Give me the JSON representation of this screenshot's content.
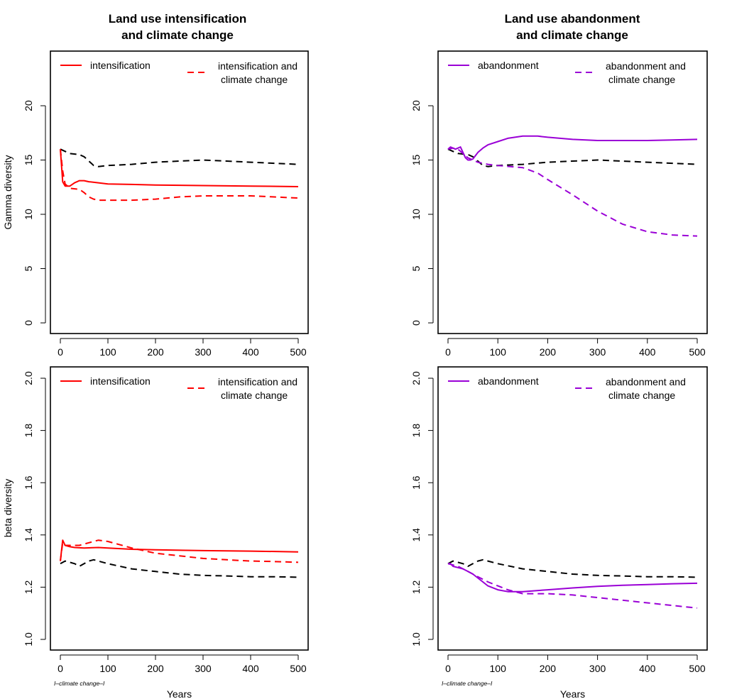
{
  "figure": {
    "panels": [
      {
        "title_line1": "Land use intensification",
        "title_line2": "and climate change"
      },
      {
        "title_line1": "Land use abandonment",
        "title_line2": "and climate change"
      },
      {
        "title_line1": "",
        "title_line2": ""
      },
      {
        "title_line1": "",
        "title_line2": ""
      }
    ]
  },
  "chart_data": [
    {
      "type": "line",
      "title": "Land use intensification and climate change",
      "xlabel": "",
      "ylabel": "Gamma diversity",
      "xlim": [
        0,
        500
      ],
      "ylim": [
        0,
        25
      ],
      "xticks": [
        0,
        100,
        200,
        300,
        400,
        500
      ],
      "yticks": [
        0,
        5,
        10,
        15,
        20
      ],
      "legend": {
        "position": "top",
        "entries": [
          "intensification",
          "intensification and climate change"
        ]
      },
      "series": [
        {
          "name": "intensification",
          "color": "#ff0000",
          "dash": "solid",
          "x": [
            0,
            5,
            10,
            20,
            30,
            40,
            50,
            60,
            80,
            100,
            150,
            200,
            300,
            400,
            500
          ],
          "y": [
            16.0,
            13.0,
            12.6,
            12.6,
            12.9,
            13.1,
            13.1,
            13.0,
            12.9,
            12.8,
            12.75,
            12.7,
            12.65,
            12.6,
            12.55
          ]
        },
        {
          "name": "intensification and climate change",
          "color": "#ff0000",
          "dash": "dashed",
          "x": [
            0,
            5,
            10,
            20,
            40,
            50,
            60,
            70,
            80,
            100,
            150,
            200,
            250,
            300,
            350,
            400,
            450,
            500
          ],
          "y": [
            16.0,
            14.0,
            12.8,
            12.4,
            12.3,
            12.0,
            11.6,
            11.4,
            11.3,
            11.3,
            11.3,
            11.4,
            11.6,
            11.7,
            11.7,
            11.7,
            11.6,
            11.5
          ]
        },
        {
          "name": "",
          "color": "#000000",
          "dash": "dashed",
          "x": [
            0,
            10,
            20,
            40,
            50,
            60,
            70,
            80,
            100,
            150,
            200,
            250,
            300,
            350,
            400,
            450,
            500
          ],
          "y": [
            16.0,
            15.8,
            15.6,
            15.5,
            15.3,
            14.9,
            14.5,
            14.4,
            14.5,
            14.6,
            14.8,
            14.9,
            15.0,
            14.9,
            14.8,
            14.7,
            14.6
          ]
        }
      ]
    },
    {
      "type": "line",
      "title": "Land use abandonment and climate change",
      "xlabel": "",
      "ylabel": "",
      "xlim": [
        0,
        500
      ],
      "ylim": [
        0,
        25
      ],
      "xticks": [
        0,
        100,
        200,
        300,
        400,
        500
      ],
      "yticks": [
        0,
        5,
        10,
        15,
        20
      ],
      "legend": {
        "position": "top",
        "entries": [
          "abandonment",
          "abandonment and climate change"
        ]
      },
      "series": [
        {
          "name": "abandonment",
          "color": "#9a00d6",
          "dash": "solid",
          "x": [
            0,
            5,
            10,
            15,
            20,
            25,
            30,
            35,
            40,
            45,
            50,
            55,
            60,
            70,
            80,
            100,
            120,
            150,
            180,
            200,
            250,
            300,
            350,
            400,
            450,
            500
          ],
          "y": [
            16.0,
            16.2,
            16.1,
            16.0,
            16.1,
            16.2,
            15.7,
            15.2,
            15.0,
            15.0,
            15.1,
            15.4,
            15.7,
            16.1,
            16.4,
            16.7,
            17.0,
            17.2,
            17.2,
            17.1,
            16.9,
            16.8,
            16.8,
            16.8,
            16.85,
            16.9
          ]
        },
        {
          "name": "abandonment and climate change",
          "color": "#9a00d6",
          "dash": "dashed",
          "x": [
            0,
            10,
            20,
            30,
            40,
            50,
            60,
            80,
            100,
            150,
            180,
            200,
            250,
            300,
            350,
            400,
            450,
            500
          ],
          "y": [
            16.0,
            16.1,
            16.0,
            15.6,
            15.2,
            15.0,
            14.8,
            14.6,
            14.5,
            14.3,
            13.8,
            13.2,
            11.8,
            10.3,
            9.1,
            8.4,
            8.1,
            8.0
          ]
        },
        {
          "name": "",
          "color": "#000000",
          "dash": "dashed",
          "x": [
            0,
            10,
            20,
            40,
            50,
            60,
            70,
            80,
            100,
            150,
            200,
            250,
            300,
            350,
            400,
            450,
            500
          ],
          "y": [
            16.0,
            15.8,
            15.6,
            15.5,
            15.3,
            14.9,
            14.5,
            14.4,
            14.5,
            14.6,
            14.8,
            14.9,
            15.0,
            14.9,
            14.8,
            14.7,
            14.6
          ]
        }
      ]
    },
    {
      "type": "line",
      "title": "",
      "xlabel": "Years",
      "ylabel": "beta diversity",
      "xlim": [
        0,
        500
      ],
      "ylim": [
        1.0,
        2.0
      ],
      "xticks": [
        0,
        100,
        200,
        300,
        400,
        500
      ],
      "yticks": [
        1.0,
        1.2,
        1.4,
        1.6,
        1.8,
        2.0
      ],
      "legend": {
        "position": "top",
        "entries": [
          "intensification",
          "intensification and climate change"
        ]
      },
      "annotation": "I–climate change–I",
      "series": [
        {
          "name": "intensification",
          "color": "#ff0000",
          "dash": "solid",
          "x": [
            0,
            5,
            10,
            20,
            30,
            50,
            80,
            100,
            150,
            200,
            300,
            400,
            500
          ],
          "y": [
            1.3,
            1.38,
            1.36,
            1.355,
            1.352,
            1.35,
            1.352,
            1.35,
            1.345,
            1.343,
            1.34,
            1.338,
            1.335
          ]
        },
        {
          "name": "intensification and climate change",
          "color": "#ff0000",
          "dash": "dashed",
          "x": [
            0,
            5,
            10,
            20,
            40,
            60,
            80,
            100,
            150,
            200,
            250,
            300,
            350,
            400,
            450,
            500
          ],
          "y": [
            1.3,
            1.37,
            1.36,
            1.36,
            1.36,
            1.37,
            1.38,
            1.375,
            1.35,
            1.33,
            1.32,
            1.31,
            1.305,
            1.3,
            1.298,
            1.295
          ]
        },
        {
          "name": "",
          "color": "#000000",
          "dash": "dashed",
          "x": [
            0,
            10,
            20,
            30,
            40,
            50,
            60,
            70,
            80,
            100,
            150,
            200,
            250,
            300,
            350,
            400,
            450,
            500
          ],
          "y": [
            1.29,
            1.3,
            1.295,
            1.29,
            1.28,
            1.29,
            1.3,
            1.305,
            1.3,
            1.29,
            1.27,
            1.26,
            1.25,
            1.245,
            1.243,
            1.24,
            1.24,
            1.238
          ]
        }
      ]
    },
    {
      "type": "line",
      "title": "",
      "xlabel": "Years",
      "ylabel": "",
      "xlim": [
        0,
        500
      ],
      "ylim": [
        1.0,
        2.0
      ],
      "xticks": [
        0,
        100,
        200,
        300,
        400,
        500
      ],
      "yticks": [
        1.0,
        1.2,
        1.4,
        1.6,
        1.8,
        2.0
      ],
      "legend": {
        "position": "top",
        "entries": [
          "abandonment",
          "abandonment and climate change"
        ]
      },
      "annotation": "I–climate change–I",
      "series": [
        {
          "name": "abandonment",
          "color": "#9a00d6",
          "dash": "solid",
          "x": [
            0,
            5,
            10,
            20,
            30,
            40,
            50,
            60,
            70,
            80,
            100,
            120,
            150,
            200,
            250,
            300,
            350,
            400,
            450,
            500
          ],
          "y": [
            1.29,
            1.29,
            1.28,
            1.275,
            1.27,
            1.26,
            1.25,
            1.235,
            1.22,
            1.205,
            1.19,
            1.183,
            1.183,
            1.19,
            1.197,
            1.203,
            1.207,
            1.21,
            1.213,
            1.215
          ]
        },
        {
          "name": "abandonment and climate change",
          "color": "#9a00d6",
          "dash": "dashed",
          "x": [
            0,
            10,
            20,
            30,
            40,
            50,
            60,
            80,
            100,
            120,
            140,
            150,
            200,
            250,
            300,
            350,
            400,
            450,
            500
          ],
          "y": [
            1.29,
            1.285,
            1.28,
            1.27,
            1.26,
            1.25,
            1.24,
            1.22,
            1.205,
            1.19,
            1.18,
            1.175,
            1.175,
            1.17,
            1.16,
            1.15,
            1.14,
            1.13,
            1.12
          ]
        },
        {
          "name": "",
          "color": "#000000",
          "dash": "dashed",
          "x": [
            0,
            10,
            20,
            30,
            40,
            50,
            60,
            70,
            80,
            100,
            150,
            200,
            250,
            300,
            350,
            400,
            450,
            500
          ],
          "y": [
            1.29,
            1.3,
            1.295,
            1.29,
            1.28,
            1.29,
            1.3,
            1.305,
            1.3,
            1.29,
            1.27,
            1.26,
            1.25,
            1.245,
            1.243,
            1.24,
            1.24,
            1.238
          ]
        }
      ]
    }
  ]
}
